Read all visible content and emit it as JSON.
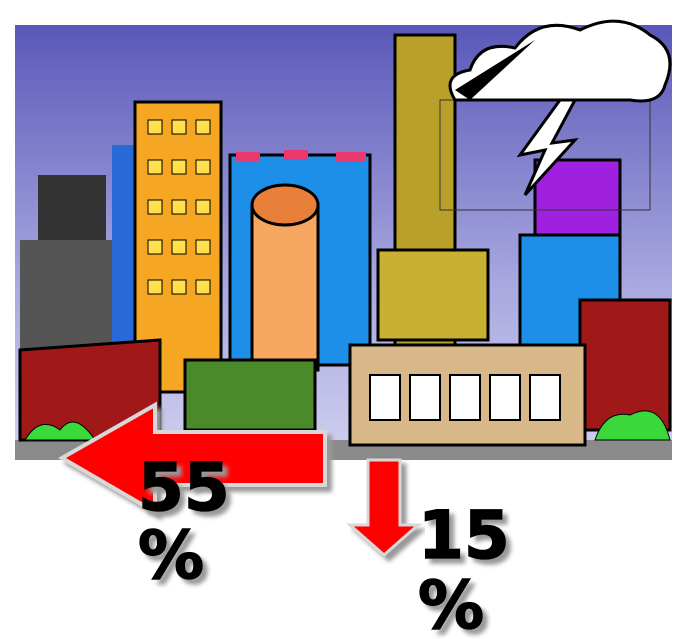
{
  "callouts": [
    {
      "number": "55",
      "unit": "%"
    },
    {
      "number": "15",
      "unit": "%"
    }
  ]
}
